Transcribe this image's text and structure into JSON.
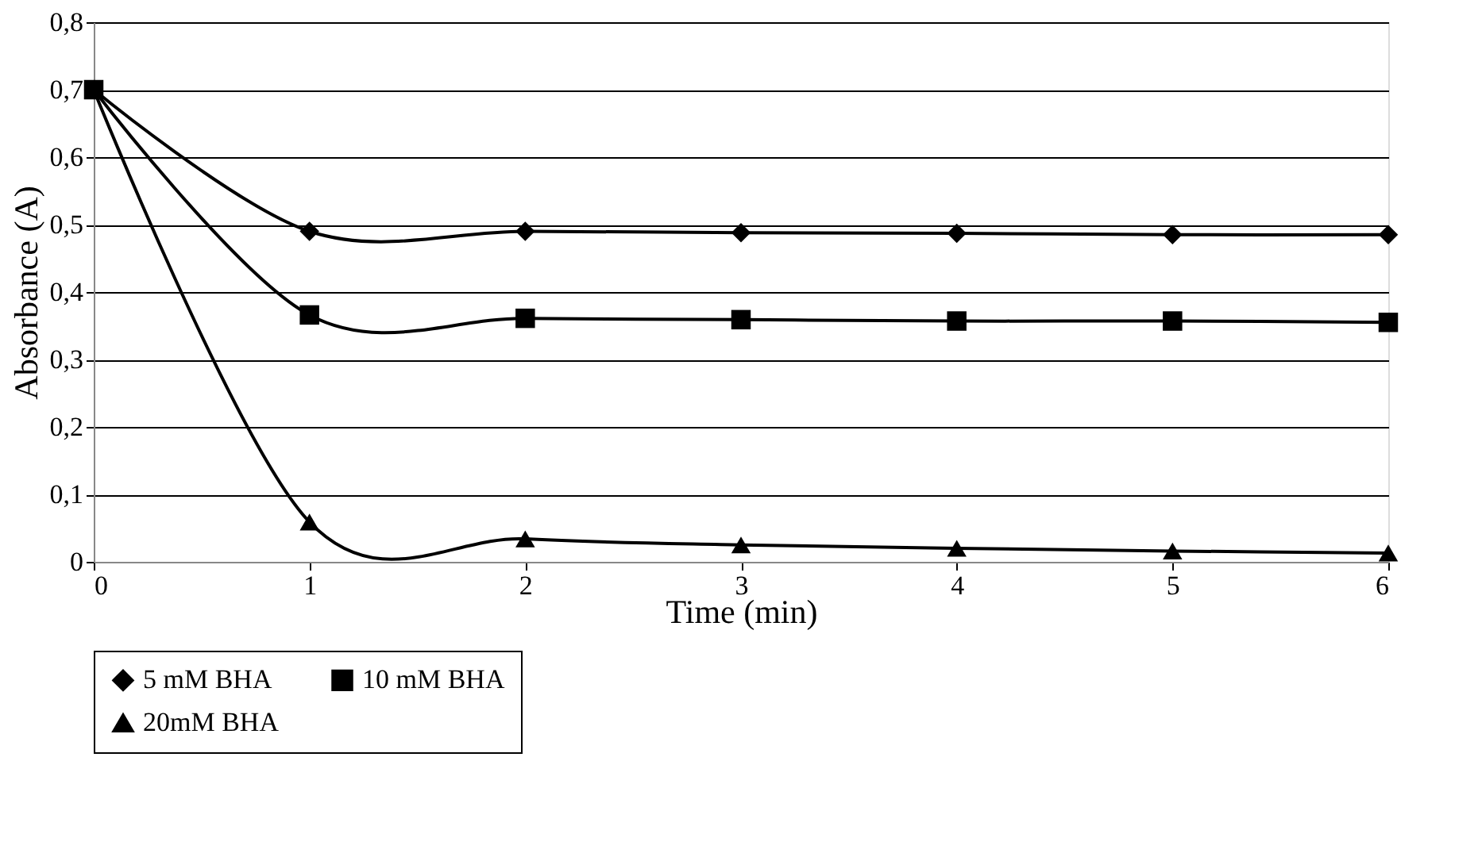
{
  "chart_data": {
    "type": "line",
    "xlabel": "Time (min)",
    "ylabel": "Absorbance (A)",
    "x": [
      0,
      1,
      2,
      3,
      4,
      5,
      6
    ],
    "series": [
      {
        "name": "5 mM BHA",
        "color": "#000000",
        "marker": "diamond",
        "values": [
          0.7,
          0.49,
          0.49,
          0.488,
          0.487,
          0.485,
          0.485
        ]
      },
      {
        "name": "10 mM BHA",
        "color": "#000000",
        "marker": "square",
        "values": [
          0.7,
          0.366,
          0.361,
          0.359,
          0.357,
          0.357,
          0.355
        ]
      },
      {
        "name": "20mM BHA",
        "color": "#000000",
        "marker": "triangle",
        "values": [
          0.7,
          0.059,
          0.034,
          0.025,
          0.02,
          0.016,
          0.013
        ]
      }
    ],
    "xlim": [
      0,
      6
    ],
    "xticks": [
      0,
      1,
      2,
      3,
      4,
      5,
      6
    ],
    "ylim": [
      0,
      0.8
    ],
    "yticks": [
      0,
      {
        "value": 0.1,
        "label": "0,1"
      },
      {
        "value": 0.2,
        "label": "0,2"
      },
      {
        "value": 0.3,
        "label": "0,3"
      },
      {
        "value": 0.4,
        "label": "0,4"
      },
      {
        "value": 0.5,
        "label": "0,5"
      },
      {
        "value": 0.6,
        "label": "0,6"
      },
      {
        "value": 0.7,
        "label": "0,7"
      },
      {
        "value": 0.8,
        "label": "0,8"
      }
    ],
    "grid": "y",
    "legend": "bottom",
    "line_style": "solid"
  }
}
